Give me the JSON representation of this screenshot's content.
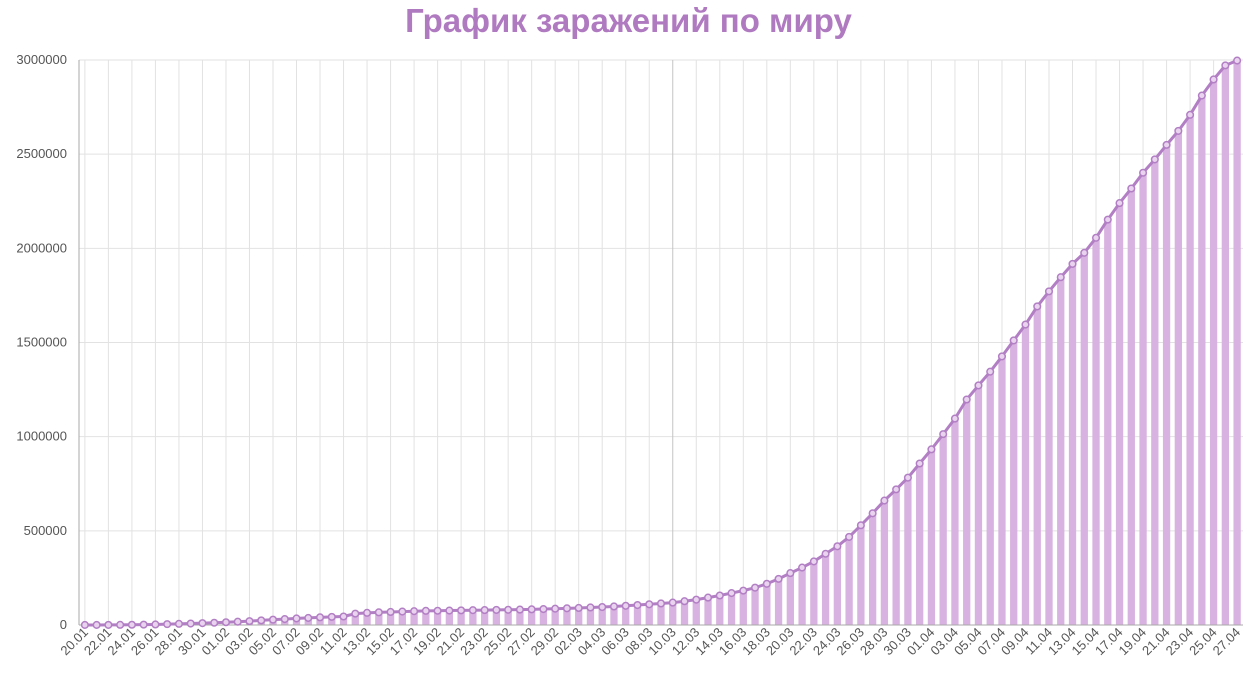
{
  "colors": {
    "title": "#b07ac0",
    "bar": "#d8b2e0",
    "line": "#b27fc4",
    "grid": "#e2e2e2",
    "axis": "#aaaaaa",
    "text": "#555555"
  },
  "chart_data": {
    "type": "bar",
    "title": "График заражений по миру",
    "xlabel": "",
    "ylabel": "",
    "ylim": [
      0,
      3000000
    ],
    "yticks": [
      0,
      500000,
      1000000,
      1500000,
      2000000,
      2500000,
      3000000
    ],
    "ytick_labels": [
      "0",
      "500000",
      "1000000",
      "1500000",
      "2000000",
      "2500000",
      "3000000"
    ],
    "grid": true,
    "overlay": "line",
    "categories": [
      "20.01",
      "21.01",
      "22.01",
      "23.01",
      "24.01",
      "25.01",
      "26.01",
      "27.01",
      "28.01",
      "29.01",
      "30.01",
      "31.01",
      "01.02",
      "02.02",
      "03.02",
      "04.02",
      "05.02",
      "06.02",
      "07.02",
      "08.02",
      "09.02",
      "10.02",
      "11.02",
      "12.02",
      "13.02",
      "14.02",
      "15.02",
      "16.02",
      "17.02",
      "18.02",
      "19.02",
      "20.02",
      "21.02",
      "22.02",
      "23.02",
      "24.02",
      "25.02",
      "26.02",
      "27.02",
      "28.02",
      "29.02",
      "01.03",
      "02.03",
      "03.03",
      "04.03",
      "05.03",
      "06.03",
      "07.03",
      "08.03",
      "09.03",
      "10.03",
      "11.03",
      "12.03",
      "13.03",
      "14.03",
      "15.03",
      "16.03",
      "17.03",
      "18.03",
      "19.03",
      "20.03",
      "21.03",
      "22.03",
      "23.03",
      "24.03",
      "25.03",
      "26.03",
      "27.03",
      "28.03",
      "29.03",
      "30.03",
      "31.03",
      "01.04",
      "02.04",
      "03.04",
      "04.04",
      "05.04",
      "06.04",
      "07.04",
      "08.04",
      "09.04",
      "10.04",
      "11.04",
      "12.04",
      "13.04",
      "14.04",
      "15.04",
      "16.04",
      "17.04",
      "18.04",
      "19.04",
      "20.04",
      "21.04",
      "22.04",
      "23.04",
      "24.04",
      "25.04",
      "26.04",
      "27.04"
    ],
    "tick_labels": [
      "20.01",
      "22.01",
      "24.01",
      "26.01",
      "28.01",
      "30.01",
      "01.02",
      "03.02",
      "05.02",
      "07.02",
      "09.02",
      "11.02",
      "13.02",
      "15.02",
      "17.02",
      "19.02",
      "21.02",
      "23.02",
      "25.02",
      "27.02",
      "29.02",
      "02.03",
      "04.03",
      "06.03",
      "08.03",
      "10.03",
      "12.03",
      "14.03",
      "16.03",
      "18.03",
      "20.03",
      "22.03",
      "24.03",
      "26.03",
      "28.03",
      "30.03",
      "01.04",
      "03.04",
      "05.04",
      "07.04",
      "09.04",
      "11.04",
      "13.04",
      "15.04",
      "17.04",
      "19.04",
      "21.04",
      "23.04",
      "25.04",
      "27.04"
    ],
    "values": [
      282,
      314,
      581,
      846,
      1320,
      2014,
      2798,
      4593,
      6065,
      7818,
      9826,
      11953,
      14557,
      17391,
      20630,
      24554,
      28276,
      31481,
      34886,
      37558,
      40554,
      43103,
      45171,
      60374,
      64543,
      67103,
      69265,
      71332,
      73327,
      75184,
      75700,
      76677,
      77673,
      78651,
      79205,
      80087,
      80828,
      81820,
      83112,
      84615,
      86604,
      88585,
      90443,
      93016,
      95314,
      98425,
      102050,
      106099,
      109991,
      114381,
      118948,
      126214,
      134576,
      145483,
      156653,
      169593,
      182490,
      198238,
      218822,
      244933,
      275597,
      305036,
      337489,
      378287,
      418045,
      467653,
      529591,
      593291,
      660706,
      720117,
      782365,
      857487,
      932605,
      1013466,
      1095917,
      1197405,
      1272115,
      1345048,
      1426096,
      1511104,
      1595350,
      1691719,
      1771514,
      1846680,
      1917319,
      1976191,
      2056054,
      2152437,
      2240190,
      2317759,
      2401379,
      2472259,
      2549294,
      2623415,
      2708885,
      2811193,
      2896636,
      2971475,
      2997000
    ]
  }
}
